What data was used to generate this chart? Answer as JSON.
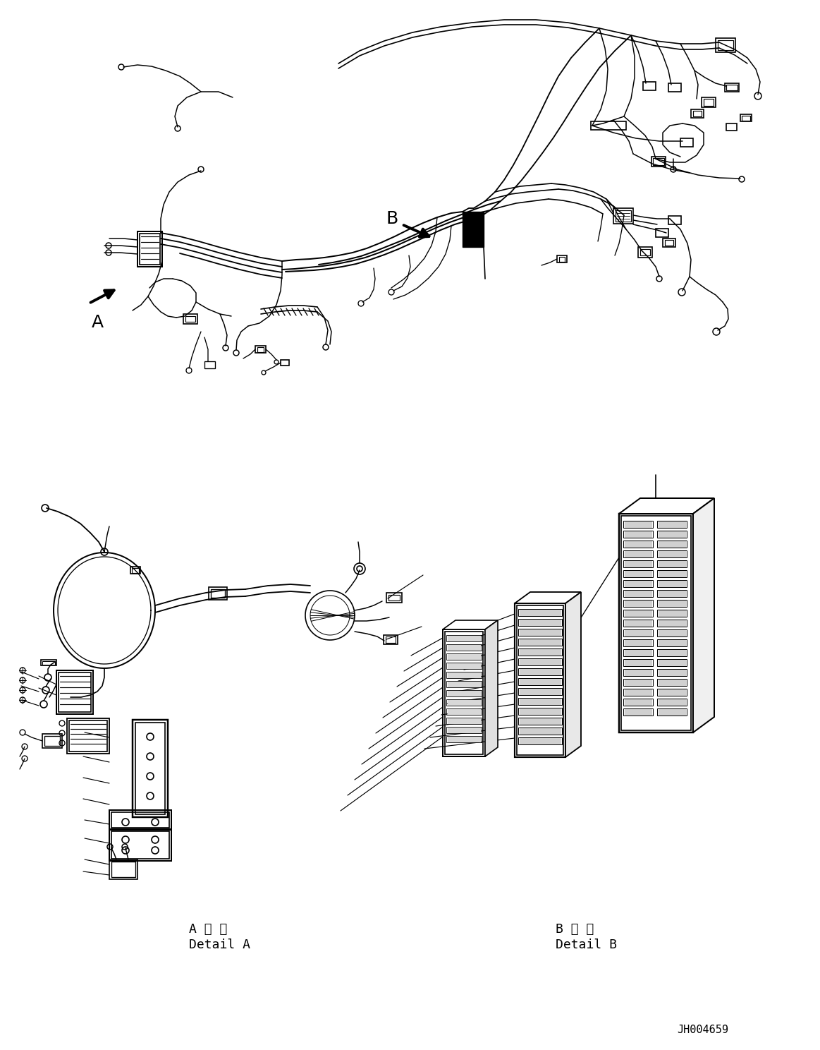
{
  "background_color": "#ffffff",
  "fig_width": 11.63,
  "fig_height": 14.88,
  "dpi": 100,
  "label_A": "A",
  "label_B": "B",
  "detail_A_ja": "A 詳 細",
  "detail_A_en": "Detail A",
  "detail_B_ja": "B 詳 細",
  "detail_B_en": "Detail B",
  "part_number": "JH004659",
  "line_color": "#000000",
  "line_width": 1.2
}
